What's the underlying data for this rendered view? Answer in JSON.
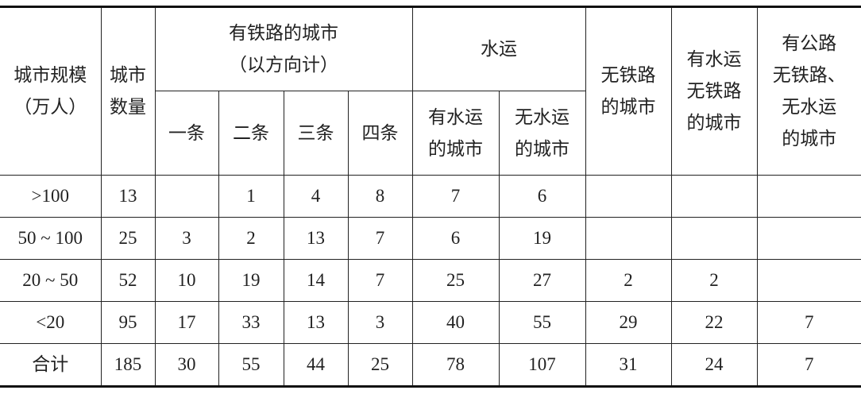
{
  "header": {
    "city_size": [
      "城市规模",
      "（万人）"
    ],
    "city_count": [
      "城市",
      "数量"
    ],
    "railway_group": [
      "有铁路的城市",
      "（以方向计）"
    ],
    "railway_cols": [
      "一条",
      "二条",
      "三条",
      "四条"
    ],
    "water_group": "水运",
    "water_cols": [
      [
        "有水运",
        "的城市"
      ],
      [
        "无水运",
        "的城市"
      ]
    ],
    "no_railway": [
      "无铁路",
      "的城市"
    ],
    "water_no_railway": [
      "有水运",
      "无铁路",
      "的城市"
    ],
    "road_only": [
      "有公路",
      "无铁路、",
      "无水运",
      "的城市"
    ]
  },
  "rows": [
    {
      "size": ">100",
      "count": "13",
      "r1": "",
      "r2": "1",
      "r3": "4",
      "r4": "8",
      "water": "7",
      "no_water": "6",
      "no_rail": "",
      "water_no_rail": "",
      "road_only": ""
    },
    {
      "size": "50 ~ 100",
      "count": "25",
      "r1": "3",
      "r2": "2",
      "r3": "13",
      "r4": "7",
      "water": "6",
      "no_water": "19",
      "no_rail": "",
      "water_no_rail": "",
      "road_only": ""
    },
    {
      "size": "20 ~ 50",
      "count": "52",
      "r1": "10",
      "r2": "19",
      "r3": "14",
      "r4": "7",
      "water": "25",
      "no_water": "27",
      "no_rail": "2",
      "water_no_rail": "2",
      "road_only": ""
    },
    {
      "size": "<20",
      "count": "95",
      "r1": "17",
      "r2": "33",
      "r3": "13",
      "r4": "3",
      "water": "40",
      "no_water": "55",
      "no_rail": "29",
      "water_no_rail": "22",
      "road_only": "7"
    },
    {
      "size": "合计",
      "count": "185",
      "r1": "30",
      "r2": "55",
      "r3": "44",
      "r4": "25",
      "water": "78",
      "no_water": "107",
      "no_rail": "31",
      "water_no_rail": "24",
      "road_only": "7"
    }
  ]
}
